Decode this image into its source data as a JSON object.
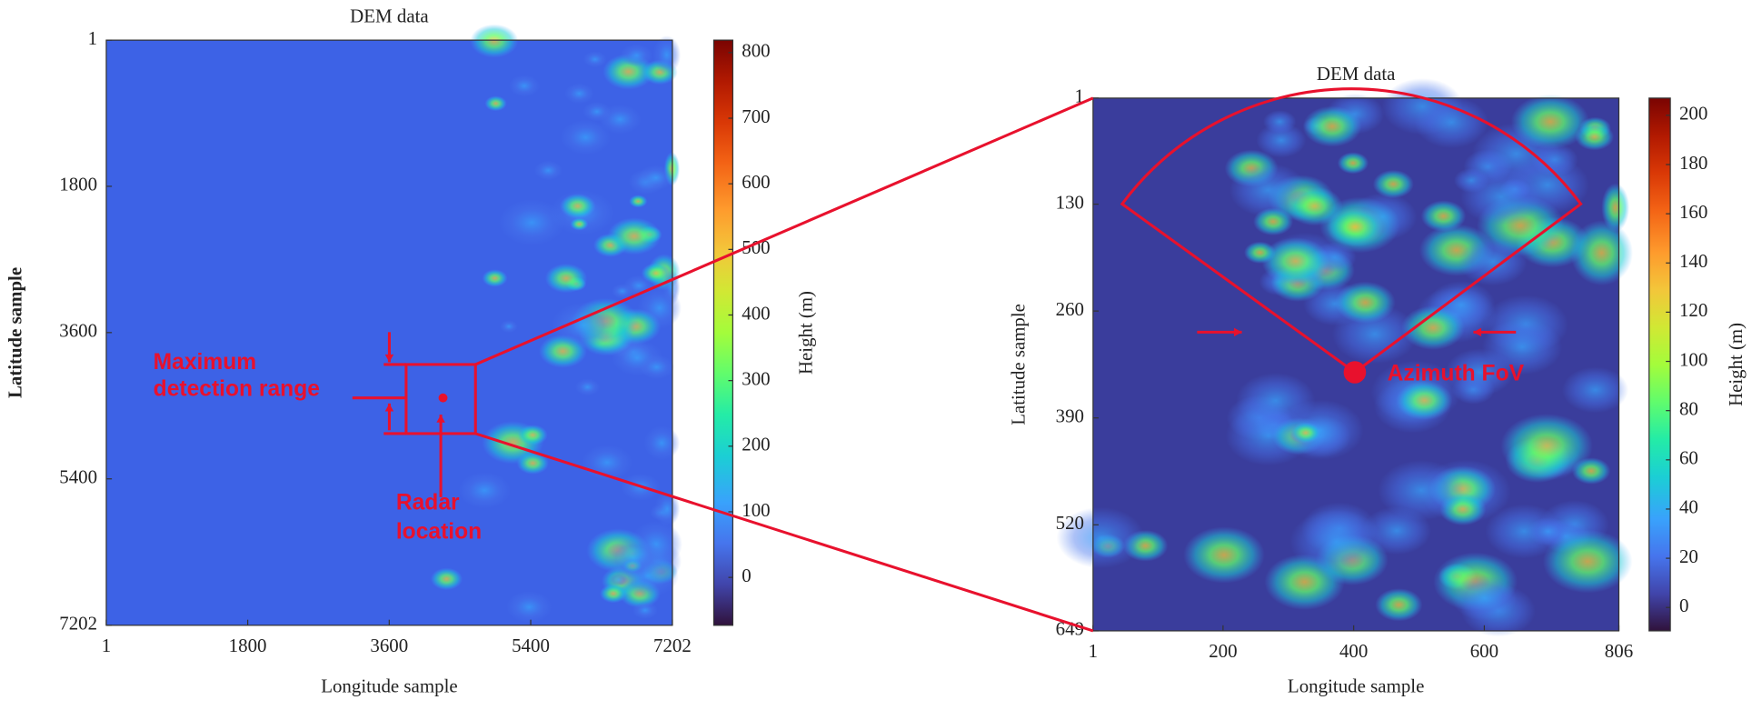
{
  "chart_data": [
    {
      "type": "heatmap",
      "title": "DEM data",
      "xlabel": "Longitude sample",
      "ylabel": "Latitude sample",
      "xlim": [
        1,
        7202
      ],
      "xticks": [
        1,
        1800,
        3600,
        5400,
        7202
      ],
      "ylim": [
        1,
        7202
      ],
      "yticks": [
        1,
        1800,
        3600,
        5400,
        7202
      ],
      "y_inverted": true,
      "colorbar": {
        "label": "Height (m)",
        "lim": [
          -73,
          819
        ],
        "ticks": [
          0,
          100,
          200,
          300,
          400,
          500,
          600,
          700,
          800
        ]
      },
      "annotations": [
        {
          "text": [
            "Maximum",
            "detection range"
          ]
        },
        {
          "text": [
            "Radar",
            "location"
          ]
        }
      ]
    },
    {
      "type": "heatmap",
      "title": "DEM data",
      "xlabel": "Longitude sample",
      "ylabel": "Latitude sample",
      "xlim": [
        1,
        806
      ],
      "xticks": [
        1,
        200,
        400,
        600,
        806
      ],
      "ylim": [
        1,
        649
      ],
      "yticks": [
        1,
        130,
        260,
        390,
        520,
        649
      ],
      "y_inverted": true,
      "colorbar": {
        "label": "Height (m)",
        "lim": [
          -9.5,
          207
        ],
        "ticks": [
          0,
          20,
          40,
          60,
          80,
          100,
          120,
          140,
          160,
          180,
          200
        ]
      },
      "annotations": [
        {
          "text": [
            "Azimuth FoV"
          ]
        }
      ]
    }
  ]
}
